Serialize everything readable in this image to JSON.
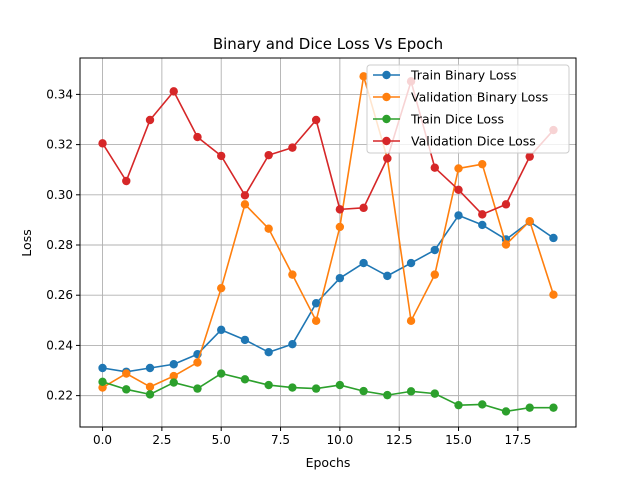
{
  "chart_data": {
    "type": "line",
    "title": "Binary and Dice Loss Vs Epoch",
    "xlabel": "Epochs",
    "ylabel": "Loss",
    "xlim": [
      -0.95,
      19.95
    ],
    "ylim": [
      0.2075,
      0.3545
    ],
    "xticks": [
      0.0,
      2.5,
      5.0,
      7.5,
      10.0,
      12.5,
      15.0,
      17.5
    ],
    "xtick_labels": [
      "0.0",
      "2.5",
      "5.0",
      "7.5",
      "10.0",
      "12.5",
      "15.0",
      "17.5"
    ],
    "yticks": [
      0.22,
      0.24,
      0.26,
      0.28,
      0.3,
      0.32,
      0.34
    ],
    "ytick_labels": [
      "0.22",
      "0.24",
      "0.26",
      "0.28",
      "0.30",
      "0.32",
      "0.34"
    ],
    "grid": true,
    "legend_position": "upper right",
    "x": [
      0,
      1,
      2,
      3,
      4,
      5,
      6,
      7,
      8,
      9,
      10,
      11,
      12,
      13,
      14,
      15,
      16,
      17,
      18,
      19
    ],
    "series": [
      {
        "name": "Train Binary Loss",
        "color": "#1f77b4",
        "values": [
          0.231,
          0.2295,
          0.231,
          0.2325,
          0.2365,
          0.2462,
          0.2422,
          0.2373,
          0.2405,
          0.2568,
          0.2668,
          0.2728,
          0.2677,
          0.2728,
          0.278,
          0.2918,
          0.288,
          0.2822,
          0.2893,
          0.2828
        ]
      },
      {
        "name": "Validation Binary Loss",
        "color": "#ff7f0e",
        "values": [
          0.2232,
          0.2288,
          0.2235,
          0.2278,
          0.2332,
          0.2628,
          0.2962,
          0.2865,
          0.2682,
          0.2498,
          0.2872,
          0.3472,
          0.3145,
          0.2498,
          0.2682,
          0.3105,
          0.3122,
          0.2802,
          0.2895,
          0.2602
        ]
      },
      {
        "name": "Train Dice Loss",
        "color": "#2ca02c",
        "values": [
          0.2255,
          0.2225,
          0.2205,
          0.2252,
          0.2228,
          0.2288,
          0.2265,
          0.2242,
          0.2232,
          0.2228,
          0.2242,
          0.2218,
          0.2202,
          0.2217,
          0.2208,
          0.2162,
          0.2165,
          0.2137,
          0.2152,
          0.2152
        ]
      },
      {
        "name": "Validation Dice Loss",
        "color": "#d62728",
        "values": [
          0.3205,
          0.3055,
          0.3298,
          0.3412,
          0.323,
          0.3155,
          0.2998,
          0.3158,
          0.3188,
          0.3298,
          0.2942,
          0.2948,
          0.3145,
          0.3452,
          0.3108,
          0.302,
          0.2922,
          0.2962,
          0.3152,
          0.3258
        ]
      }
    ]
  }
}
